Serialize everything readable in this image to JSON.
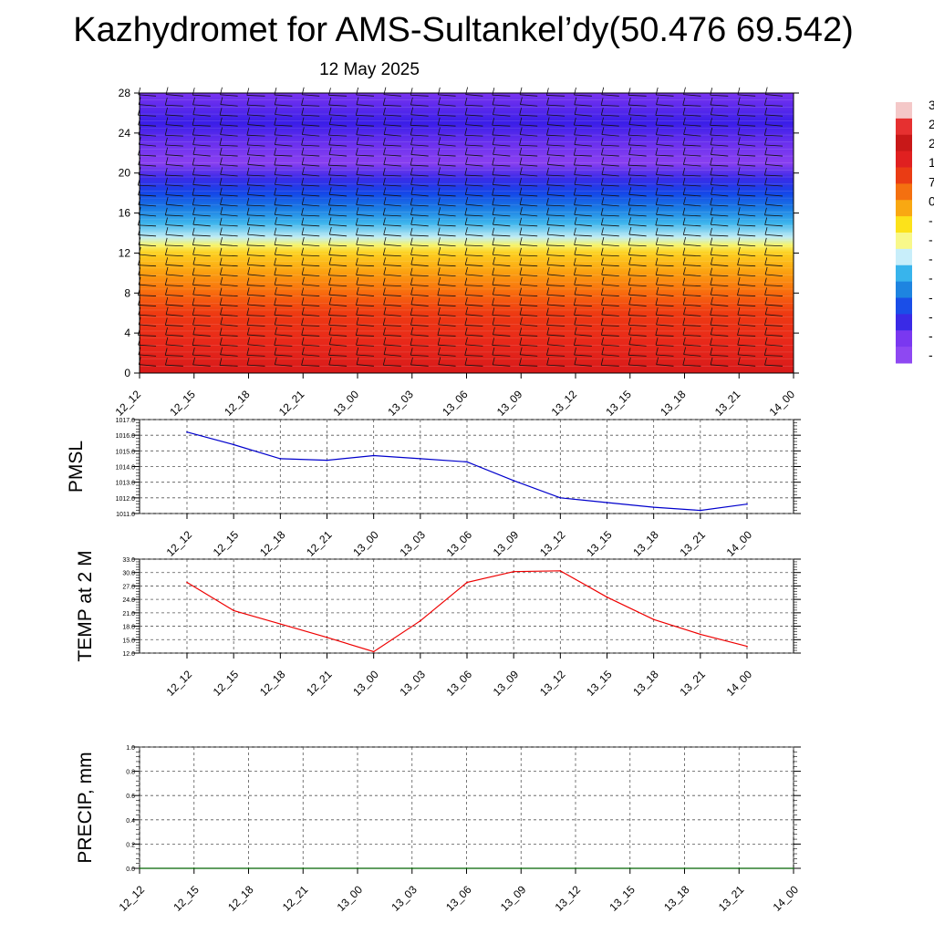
{
  "title": "Kazhydromet for AMS-Sultankel’dy(50.476 69.542)",
  "subtitle": "12 May 2025",
  "chart_data": [
    {
      "type": "heatmap",
      "panel": "cross-section",
      "x_categories": [
        "12_12",
        "12_15",
        "12_18",
        "12_21",
        "13_00",
        "13_03",
        "13_06",
        "13_09",
        "13_12",
        "13_15",
        "13_18",
        "13_21",
        "14_00"
      ],
      "ylim": [
        0,
        28
      ],
      "yticks": [
        0,
        4,
        8,
        12,
        16,
        20,
        24,
        28
      ],
      "fill_gradient": [
        {
          "y": 0,
          "color": "#d81a1a"
        },
        {
          "y": 3,
          "color": "#e8281a"
        },
        {
          "y": 6,
          "color": "#ee3a12"
        },
        {
          "y": 8,
          "color": "#f86a0e"
        },
        {
          "y": 10,
          "color": "#fb9e10"
        },
        {
          "y": 12,
          "color": "#fdd020"
        },
        {
          "y": 12.8,
          "color": "#f6f46e"
        },
        {
          "y": 13.6,
          "color": "#c0ecf4"
        },
        {
          "y": 15,
          "color": "#3cb4ec"
        },
        {
          "y": 16.5,
          "color": "#1a7ae4"
        },
        {
          "y": 18,
          "color": "#1446e8"
        },
        {
          "y": 19.5,
          "color": "#3a2ae8"
        },
        {
          "y": 21,
          "color": "#8a40f0"
        },
        {
          "y": 23,
          "color": "#6a30ee"
        },
        {
          "y": 25,
          "color": "#3a1ee8"
        },
        {
          "y": 28,
          "color": "#7a34f0"
        }
      ],
      "colorbar_labels": [
        "3",
        "2",
        "2",
        "1",
        "7",
        "0",
        "-",
        "-",
        "-",
        "-",
        "-",
        "-",
        "-",
        "-"
      ],
      "colorbar_colors": [
        "#f4c8c8",
        "#e63030",
        "#c81818",
        "#e02020",
        "#ea3c14",
        "#f47010",
        "#f9a812",
        "#fce21a",
        "#f8f88a",
        "#c8eefa",
        "#38b4ec",
        "#1e84e0",
        "#1a4ee8",
        "#3a2ae6",
        "#7a38f0",
        "#8e48f2"
      ]
    },
    {
      "type": "line",
      "panel": "pmsl",
      "ylabel": "PMSL",
      "x": [
        "12_12",
        "12_15",
        "12_18",
        "12_21",
        "13_00",
        "13_03",
        "13_06",
        "13_09",
        "13_12",
        "13_15",
        "13_18",
        "13_21",
        "14_00"
      ],
      "ylim": [
        1011.0,
        1017.0
      ],
      "yticks": [
        "1011.0",
        "1012.0",
        "1013.0",
        "1014.0",
        "1015.0",
        "1016.0",
        "1017.0"
      ],
      "series": [
        {
          "color": "#0000cc",
          "values": [
            1016.2,
            1015.4,
            1014.5,
            1014.4,
            1014.7,
            1014.5,
            1014.3,
            1013.1,
            1012.0,
            1011.7,
            1011.4,
            1011.2,
            1011.6
          ]
        }
      ]
    },
    {
      "type": "line",
      "panel": "temp",
      "ylabel": "TEMP at 2 M",
      "x": [
        "12_12",
        "12_15",
        "12_18",
        "12_21",
        "13_00",
        "13_03",
        "13_06",
        "13_09",
        "13_12",
        "13_15",
        "13_18",
        "13_21",
        "14_00"
      ],
      "ylim": [
        12.0,
        33.0
      ],
      "yticks": [
        "12.0",
        "15.0",
        "18.0",
        "21.0",
        "24.0",
        "27.0",
        "30.0",
        "33.0"
      ],
      "series": [
        {
          "color": "#ee0000",
          "values": [
            27.8,
            21.5,
            18.5,
            15.5,
            12.3,
            19.2,
            27.8,
            30.2,
            30.4,
            24.5,
            19.5,
            16.2,
            13.5
          ]
        }
      ]
    },
    {
      "type": "line",
      "panel": "precip",
      "ylabel": "PRECIP, mm",
      "x": [
        "12_12",
        "12_15",
        "12_18",
        "12_21",
        "13_00",
        "13_03",
        "13_06",
        "13_09",
        "13_12",
        "13_15",
        "13_18",
        "13_21",
        "14_00"
      ],
      "ylim": [
        0.0,
        1.0
      ],
      "yticks": [
        "0.0",
        "0.2",
        "0.4",
        "0.6",
        "0.8",
        "1.0"
      ],
      "series": [
        {
          "color": "#006400",
          "values": [
            0,
            0,
            0,
            0,
            0,
            0,
            0,
            0,
            0,
            0,
            0,
            0,
            0
          ]
        }
      ]
    }
  ]
}
